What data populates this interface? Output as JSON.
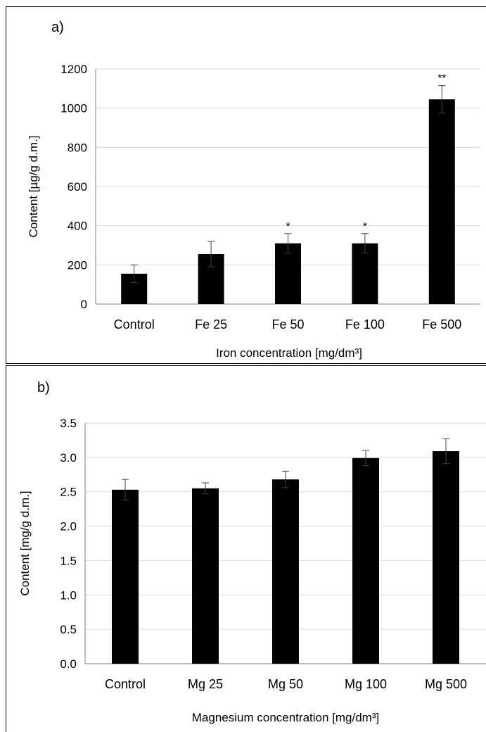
{
  "chart_data": [
    {
      "type": "bar",
      "panel_label": "a)",
      "categories": [
        "Control",
        "Fe 25",
        "Fe 50",
        "Fe 100",
        "Fe 500"
      ],
      "values": [
        155,
        255,
        310,
        310,
        1045
      ],
      "errors": [
        45,
        65,
        50,
        50,
        70
      ],
      "annotations": [
        "",
        "",
        "*",
        "*",
        "**"
      ],
      "xlabel": "Iron concentration [mg/dm³]",
      "ylabel": "Content [µg/g d.m.]",
      "ylim": [
        0,
        1200
      ],
      "yticks": [
        0,
        200,
        400,
        600,
        800,
        1000,
        1200
      ],
      "ytick_labels": [
        "0",
        "200",
        "400",
        "600",
        "800",
        "1000",
        "1200"
      ],
      "grid": true,
      "bar_color": "#000000"
    },
    {
      "type": "bar",
      "panel_label": "b)",
      "categories": [
        "Control",
        "Mg 25",
        "Mg 50",
        "Mg 100",
        "Mg 500"
      ],
      "values": [
        2.53,
        2.55,
        2.68,
        2.99,
        3.09
      ],
      "errors": [
        0.15,
        0.08,
        0.12,
        0.11,
        0.18
      ],
      "annotations": [
        "",
        "",
        "",
        "",
        ""
      ],
      "xlabel": "Magnesium concentration [mg/dm³]",
      "ylabel": "Content [mg/g d.m.]",
      "ylim": [
        0,
        3.5
      ],
      "yticks": [
        0,
        0.5,
        1,
        1.5,
        2,
        2.5,
        3,
        3.5
      ],
      "ytick_labels": [
        "0.0",
        "0.5",
        "1.0",
        "1.5",
        "2.0",
        "2.5",
        "3.0",
        "3.5"
      ],
      "grid": true,
      "bar_color": "#000000"
    }
  ]
}
